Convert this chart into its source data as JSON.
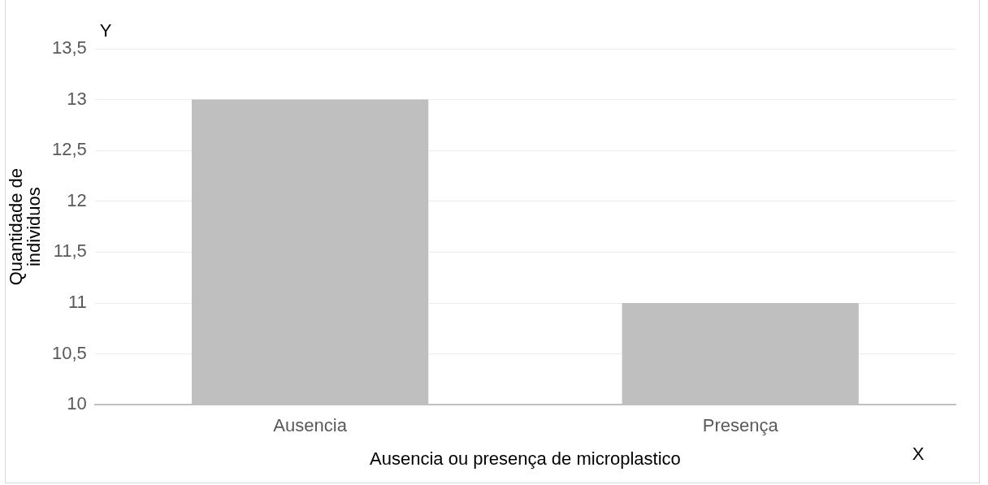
{
  "chart_data": {
    "type": "bar",
    "xlabel": "Ausencia ou presença de microplastico",
    "ylabel": "Quantidade de individuos",
    "categories": [
      "Ausencia",
      "Presença"
    ],
    "values": [
      13,
      11
    ],
    "color": "#bfbfbf",
    "ylim": [
      10,
      13.5
    ],
    "yticks": [
      10,
      {
        "value": 10.5,
        "label": "10,5"
      },
      11,
      {
        "value": 11.5,
        "label": "11,5"
      },
      12,
      {
        "value": 12.5,
        "label": "12,5"
      },
      13,
      {
        "value": 13.5,
        "label": "13,5"
      }
    ],
    "grid": "y",
    "annotations": [
      "Y",
      "X"
    ]
  }
}
